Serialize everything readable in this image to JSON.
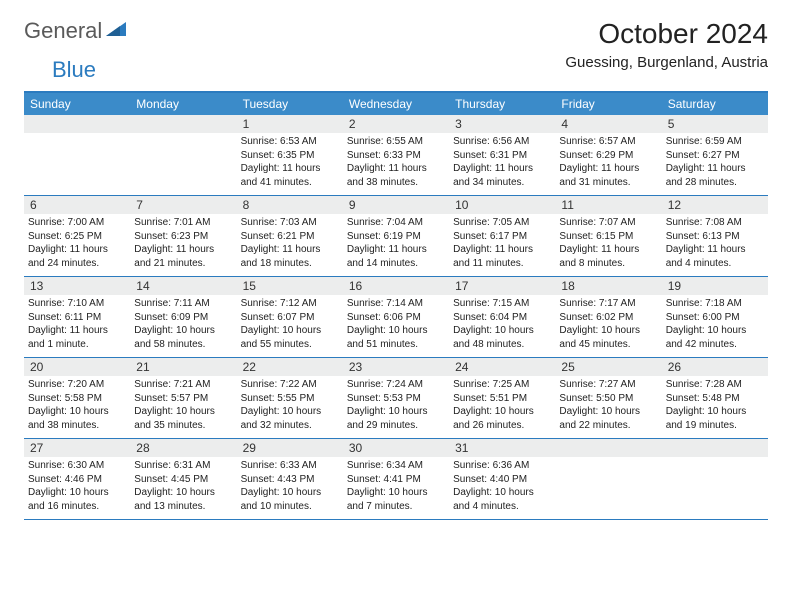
{
  "logo": {
    "part1": "General",
    "part2": "Blue"
  },
  "title": "October 2024",
  "location": "Guessing, Burgenland, Austria",
  "colors": {
    "header_bg": "#3b8bc9",
    "border": "#2b7bbf",
    "daynum_bg": "#eceded",
    "text": "#222222",
    "logo_gray": "#5a5a5a",
    "logo_blue": "#2b7bbf"
  },
  "dow": [
    "Sunday",
    "Monday",
    "Tuesday",
    "Wednesday",
    "Thursday",
    "Friday",
    "Saturday"
  ],
  "weeks": [
    [
      {
        "n": "",
        "l1": "",
        "l2": "",
        "l3": "",
        "l4": ""
      },
      {
        "n": "",
        "l1": "",
        "l2": "",
        "l3": "",
        "l4": ""
      },
      {
        "n": "1",
        "l1": "Sunrise: 6:53 AM",
        "l2": "Sunset: 6:35 PM",
        "l3": "Daylight: 11 hours",
        "l4": "and 41 minutes."
      },
      {
        "n": "2",
        "l1": "Sunrise: 6:55 AM",
        "l2": "Sunset: 6:33 PM",
        "l3": "Daylight: 11 hours",
        "l4": "and 38 minutes."
      },
      {
        "n": "3",
        "l1": "Sunrise: 6:56 AM",
        "l2": "Sunset: 6:31 PM",
        "l3": "Daylight: 11 hours",
        "l4": "and 34 minutes."
      },
      {
        "n": "4",
        "l1": "Sunrise: 6:57 AM",
        "l2": "Sunset: 6:29 PM",
        "l3": "Daylight: 11 hours",
        "l4": "and 31 minutes."
      },
      {
        "n": "5",
        "l1": "Sunrise: 6:59 AM",
        "l2": "Sunset: 6:27 PM",
        "l3": "Daylight: 11 hours",
        "l4": "and 28 minutes."
      }
    ],
    [
      {
        "n": "6",
        "l1": "Sunrise: 7:00 AM",
        "l2": "Sunset: 6:25 PM",
        "l3": "Daylight: 11 hours",
        "l4": "and 24 minutes."
      },
      {
        "n": "7",
        "l1": "Sunrise: 7:01 AM",
        "l2": "Sunset: 6:23 PM",
        "l3": "Daylight: 11 hours",
        "l4": "and 21 minutes."
      },
      {
        "n": "8",
        "l1": "Sunrise: 7:03 AM",
        "l2": "Sunset: 6:21 PM",
        "l3": "Daylight: 11 hours",
        "l4": "and 18 minutes."
      },
      {
        "n": "9",
        "l1": "Sunrise: 7:04 AM",
        "l2": "Sunset: 6:19 PM",
        "l3": "Daylight: 11 hours",
        "l4": "and 14 minutes."
      },
      {
        "n": "10",
        "l1": "Sunrise: 7:05 AM",
        "l2": "Sunset: 6:17 PM",
        "l3": "Daylight: 11 hours",
        "l4": "and 11 minutes."
      },
      {
        "n": "11",
        "l1": "Sunrise: 7:07 AM",
        "l2": "Sunset: 6:15 PM",
        "l3": "Daylight: 11 hours",
        "l4": "and 8 minutes."
      },
      {
        "n": "12",
        "l1": "Sunrise: 7:08 AM",
        "l2": "Sunset: 6:13 PM",
        "l3": "Daylight: 11 hours",
        "l4": "and 4 minutes."
      }
    ],
    [
      {
        "n": "13",
        "l1": "Sunrise: 7:10 AM",
        "l2": "Sunset: 6:11 PM",
        "l3": "Daylight: 11 hours",
        "l4": "and 1 minute."
      },
      {
        "n": "14",
        "l1": "Sunrise: 7:11 AM",
        "l2": "Sunset: 6:09 PM",
        "l3": "Daylight: 10 hours",
        "l4": "and 58 minutes."
      },
      {
        "n": "15",
        "l1": "Sunrise: 7:12 AM",
        "l2": "Sunset: 6:07 PM",
        "l3": "Daylight: 10 hours",
        "l4": "and 55 minutes."
      },
      {
        "n": "16",
        "l1": "Sunrise: 7:14 AM",
        "l2": "Sunset: 6:06 PM",
        "l3": "Daylight: 10 hours",
        "l4": "and 51 minutes."
      },
      {
        "n": "17",
        "l1": "Sunrise: 7:15 AM",
        "l2": "Sunset: 6:04 PM",
        "l3": "Daylight: 10 hours",
        "l4": "and 48 minutes."
      },
      {
        "n": "18",
        "l1": "Sunrise: 7:17 AM",
        "l2": "Sunset: 6:02 PM",
        "l3": "Daylight: 10 hours",
        "l4": "and 45 minutes."
      },
      {
        "n": "19",
        "l1": "Sunrise: 7:18 AM",
        "l2": "Sunset: 6:00 PM",
        "l3": "Daylight: 10 hours",
        "l4": "and 42 minutes."
      }
    ],
    [
      {
        "n": "20",
        "l1": "Sunrise: 7:20 AM",
        "l2": "Sunset: 5:58 PM",
        "l3": "Daylight: 10 hours",
        "l4": "and 38 minutes."
      },
      {
        "n": "21",
        "l1": "Sunrise: 7:21 AM",
        "l2": "Sunset: 5:57 PM",
        "l3": "Daylight: 10 hours",
        "l4": "and 35 minutes."
      },
      {
        "n": "22",
        "l1": "Sunrise: 7:22 AM",
        "l2": "Sunset: 5:55 PM",
        "l3": "Daylight: 10 hours",
        "l4": "and 32 minutes."
      },
      {
        "n": "23",
        "l1": "Sunrise: 7:24 AM",
        "l2": "Sunset: 5:53 PM",
        "l3": "Daylight: 10 hours",
        "l4": "and 29 minutes."
      },
      {
        "n": "24",
        "l1": "Sunrise: 7:25 AM",
        "l2": "Sunset: 5:51 PM",
        "l3": "Daylight: 10 hours",
        "l4": "and 26 minutes."
      },
      {
        "n": "25",
        "l1": "Sunrise: 7:27 AM",
        "l2": "Sunset: 5:50 PM",
        "l3": "Daylight: 10 hours",
        "l4": "and 22 minutes."
      },
      {
        "n": "26",
        "l1": "Sunrise: 7:28 AM",
        "l2": "Sunset: 5:48 PM",
        "l3": "Daylight: 10 hours",
        "l4": "and 19 minutes."
      }
    ],
    [
      {
        "n": "27",
        "l1": "Sunrise: 6:30 AM",
        "l2": "Sunset: 4:46 PM",
        "l3": "Daylight: 10 hours",
        "l4": "and 16 minutes."
      },
      {
        "n": "28",
        "l1": "Sunrise: 6:31 AM",
        "l2": "Sunset: 4:45 PM",
        "l3": "Daylight: 10 hours",
        "l4": "and 13 minutes."
      },
      {
        "n": "29",
        "l1": "Sunrise: 6:33 AM",
        "l2": "Sunset: 4:43 PM",
        "l3": "Daylight: 10 hours",
        "l4": "and 10 minutes."
      },
      {
        "n": "30",
        "l1": "Sunrise: 6:34 AM",
        "l2": "Sunset: 4:41 PM",
        "l3": "Daylight: 10 hours",
        "l4": "and 7 minutes."
      },
      {
        "n": "31",
        "l1": "Sunrise: 6:36 AM",
        "l2": "Sunset: 4:40 PM",
        "l3": "Daylight: 10 hours",
        "l4": "and 4 minutes."
      },
      {
        "n": "",
        "l1": "",
        "l2": "",
        "l3": "",
        "l4": ""
      },
      {
        "n": "",
        "l1": "",
        "l2": "",
        "l3": "",
        "l4": ""
      }
    ]
  ]
}
